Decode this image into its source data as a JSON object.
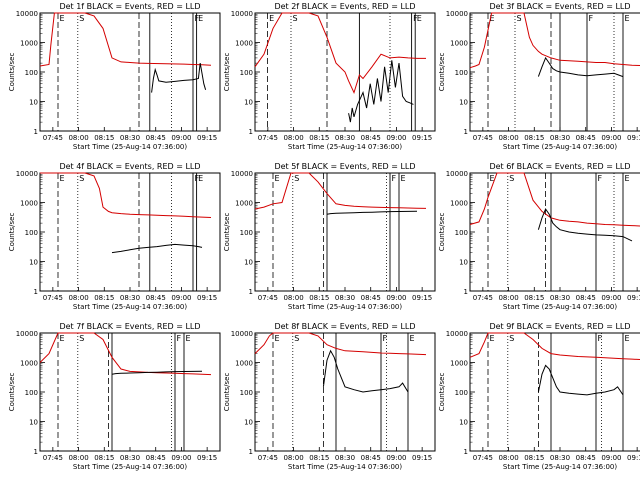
{
  "chart_data": [
    {
      "type": "line",
      "title": "Det 1f BLACK = Events, RED = LLD",
      "xlabel": "Start Time (25-Aug-14 07:36:00)",
      "ylabel": "Counts/sec",
      "yscale": "log",
      "ylim": [
        1,
        10000
      ],
      "x_ticks": [
        "07:45",
        "08:00",
        "08:15",
        "08:30",
        "08:45",
        "09:00",
        "09:15"
      ],
      "y_ticks": [
        "1",
        "10",
        "100",
        "1000",
        "10000"
      ],
      "markers": [
        "E",
        "S",
        "F",
        "E"
      ],
      "series": [
        {
          "color": "#d40000",
          "x": [
            0,
            5,
            6,
            8,
            12,
            15,
            18,
            22,
            25,
            30,
            35,
            40,
            45,
            50,
            55,
            60,
            70,
            80,
            85,
            90,
            95
          ],
          "y": [
            160,
            180,
            800,
            10000,
            10000,
            10000,
            10000,
            10000,
            10000,
            8000,
            3000,
            300,
            220,
            210,
            200,
            195,
            190,
            185,
            180,
            175,
            170
          ]
        },
        {
          "color": "#000000",
          "x": [
            62,
            63,
            64,
            65,
            66,
            70,
            75,
            80,
            85,
            88,
            89,
            90,
            91,
            92
          ],
          "y": [
            20,
            60,
            120,
            80,
            50,
            45,
            48,
            52,
            55,
            60,
            200,
            90,
            40,
            25
          ]
        }
      ],
      "dashed_lines": [
        10,
        55
      ],
      "dotted_lines": [
        21,
        73
      ],
      "solid_lines": [
        61,
        85,
        87
      ]
    },
    {
      "type": "line",
      "title": "Det 2f BLACK = Events, RED = LLD",
      "xlabel": "Start Time (25-Aug-14 07:36:00)",
      "ylabel": "Counts/sec",
      "yscale": "log",
      "ylim": [
        1,
        10000
      ],
      "x_ticks": [
        "07:45",
        "08:00",
        "08:15",
        "08:30",
        "08:45",
        "09:00",
        "09:15"
      ],
      "y_ticks": [
        "1",
        "10",
        "100",
        "1000",
        "10000"
      ],
      "markers": [
        "E",
        "S",
        "F",
        "E"
      ],
      "series": [
        {
          "color": "#d40000",
          "x": [
            0,
            5,
            10,
            15,
            20,
            25,
            30,
            35,
            40,
            45,
            50,
            52,
            55,
            58,
            60,
            65,
            70,
            75,
            80,
            85,
            90,
            95
          ],
          "y": [
            150,
            400,
            3000,
            10000,
            10000,
            10000,
            10000,
            8000,
            1500,
            200,
            100,
            50,
            20,
            80,
            60,
            150,
            400,
            300,
            320,
            300,
            290,
            290
          ]
        },
        {
          "color": "#000000",
          "x": [
            52,
            53,
            54,
            55,
            57,
            60,
            62,
            64,
            66,
            68,
            70,
            72,
            74,
            76,
            78,
            80,
            82,
            84,
            86,
            88
          ],
          "y": [
            4,
            2,
            6,
            3,
            8,
            20,
            6,
            40,
            8,
            60,
            10,
            150,
            20,
            250,
            30,
            200,
            15,
            10,
            9,
            8
          ]
        }
      ],
      "dashed_lines": [
        7,
        40
      ],
      "dotted_lines": [
        20,
        75
      ],
      "solid_lines": [
        58,
        87,
        89
      ]
    },
    {
      "type": "line",
      "title": "Det 3f BLACK = Events, RED = LLD",
      "xlabel": "Start Time (25-Aug-14 07:36:00)",
      "ylabel": "Counts/sec",
      "yscale": "log",
      "ylim": [
        1,
        10000
      ],
      "x_ticks": [
        "07:45",
        "08:00",
        "08:15",
        "08:30",
        "08:45",
        "09:00",
        "09:15"
      ],
      "y_ticks": [
        "1",
        "10",
        "100",
        "1000",
        "10000"
      ],
      "markers": [
        "E",
        "S",
        "F",
        "E"
      ],
      "series": [
        {
          "color": "#d40000",
          "x": [
            0,
            3,
            5,
            8,
            12,
            15,
            20,
            25,
            30,
            33,
            35,
            38,
            40,
            45,
            50,
            55,
            60,
            65,
            70,
            75,
            80,
            85,
            90,
            95
          ],
          "y": [
            140,
            160,
            180,
            700,
            10000,
            10000,
            10000,
            10000,
            10000,
            1500,
            800,
            500,
            400,
            300,
            250,
            240,
            230,
            220,
            210,
            210,
            190,
            180,
            170,
            165
          ]
        },
        {
          "color": "#000000",
          "x": [
            38,
            40,
            42,
            44,
            46,
            48,
            50,
            55,
            60,
            65,
            70,
            75,
            80,
            85
          ],
          "y": [
            70,
            150,
            300,
            200,
            130,
            110,
            100,
            90,
            80,
            75,
            80,
            85,
            90,
            70
          ]
        }
      ],
      "dashed_lines": [
        10,
        45
      ],
      "dotted_lines": [
        25,
        80
      ],
      "solid_lines": [
        50,
        65,
        85
      ]
    },
    {
      "type": "line",
      "title": "Det 4f BLACK = Events, RED = LLD",
      "xlabel": "Start Time (25-Aug-14 07:36:00)",
      "ylabel": "Counts/sec",
      "yscale": "log",
      "ylim": [
        1,
        10000
      ],
      "x_ticks": [
        "07:45",
        "08:00",
        "08:15",
        "08:30",
        "08:45",
        "09:00",
        "09:15"
      ],
      "y_ticks": [
        "1",
        "10",
        "100",
        "1000",
        "10000"
      ],
      "markers": [
        "E",
        "S",
        "F",
        "E"
      ],
      "series": [
        {
          "color": "#d40000",
          "x": [
            0,
            10,
            15,
            20,
            25,
            30,
            33,
            35,
            38,
            40,
            45,
            50,
            55,
            60,
            65,
            70,
            75,
            80,
            85,
            90,
            95
          ],
          "y": [
            10000,
            10000,
            10000,
            10000,
            10000,
            8000,
            3000,
            700,
            500,
            450,
            420,
            400,
            390,
            380,
            370,
            360,
            350,
            340,
            330,
            320,
            310
          ]
        },
        {
          "color": "#000000",
          "x": [
            40,
            45,
            50,
            55,
            60,
            65,
            70,
            75,
            80,
            85,
            88,
            90
          ],
          "y": [
            20,
            22,
            25,
            28,
            30,
            32,
            35,
            38,
            36,
            34,
            32,
            30
          ]
        }
      ],
      "dashed_lines": [
        10,
        55
      ],
      "dotted_lines": [
        21,
        73
      ],
      "solid_lines": [
        61,
        85,
        87
      ]
    },
    {
      "type": "line",
      "title": "Det 5f BLACK = Events, RED = LLD",
      "xlabel": "Start Time (25-Aug-14 07:36:00)",
      "ylabel": "Counts/sec",
      "yscale": "log",
      "ylim": [
        1,
        10000
      ],
      "x_ticks": [
        "07:45",
        "08:00",
        "08:15",
        "08:30",
        "08:45",
        "09:00",
        "09:15"
      ],
      "y_ticks": [
        "1",
        "10",
        "100",
        "1000",
        "10000"
      ],
      "markers": [
        "E",
        "S",
        "F",
        "E"
      ],
      "series": [
        {
          "color": "#d40000",
          "x": [
            0,
            5,
            10,
            15,
            20,
            25,
            30,
            35,
            40,
            45,
            50,
            55,
            60,
            65,
            70,
            75,
            80,
            85,
            90,
            95
          ],
          "y": [
            600,
            700,
            900,
            1000,
            10000,
            10000,
            10000,
            5000,
            2000,
            900,
            800,
            750,
            720,
            700,
            680,
            670,
            660,
            650,
            640,
            630
          ]
        },
        {
          "color": "#000000",
          "x": [
            40,
            42,
            45,
            50,
            55,
            60,
            65,
            70,
            75,
            80,
            85,
            90
          ],
          "y": [
            400,
            420,
            430,
            440,
            450,
            460,
            470,
            480,
            490,
            495,
            500,
            505
          ]
        }
      ],
      "dashed_lines": [
        10,
        38
      ],
      "dotted_lines": [
        21,
        73
      ],
      "solid_lines": [
        40,
        75,
        80
      ]
    },
    {
      "type": "line",
      "title": "Det 6f BLACK = Events, RED = LLD",
      "xlabel": "Start Time (25-Aug-14 07:36:00)",
      "ylabel": "Counts/sec",
      "yscale": "log",
      "ylim": [
        1,
        10000
      ],
      "x_ticks": [
        "07:45",
        "08:00",
        "08:15",
        "08:30",
        "08:45",
        "09:00",
        "09:15"
      ],
      "y_ticks": [
        "1",
        "10",
        "100",
        "1000",
        "10000"
      ],
      "markers": [
        "E",
        "S",
        "F",
        "E"
      ],
      "series": [
        {
          "color": "#d40000",
          "x": [
            0,
            5,
            8,
            10,
            15,
            20,
            25,
            30,
            35,
            40,
            45,
            50,
            55,
            60,
            65,
            70,
            75,
            80,
            85,
            90,
            95
          ],
          "y": [
            180,
            220,
            600,
            1500,
            10000,
            10000,
            10000,
            10000,
            1200,
            500,
            300,
            250,
            230,
            220,
            200,
            190,
            180,
            175,
            170,
            165,
            160
          ]
        },
        {
          "color": "#000000",
          "x": [
            38,
            40,
            42,
            44,
            46,
            48,
            50,
            55,
            60,
            65,
            70,
            75,
            80,
            85,
            90
          ],
          "y": [
            120,
            300,
            600,
            400,
            200,
            150,
            120,
            100,
            90,
            85,
            80,
            78,
            75,
            70,
            50
          ]
        }
      ],
      "dashed_lines": [
        10,
        42
      ],
      "dotted_lines": [
        21,
        80
      ],
      "solid_lines": [
        45,
        70,
        85
      ]
    },
    {
      "type": "line",
      "title": "Det 7f BLACK = Events, RED = LLD",
      "xlabel": "Start Time (25-Aug-14 07:36:00)",
      "ylabel": "Counts/sec",
      "yscale": "log",
      "ylim": [
        1,
        10000
      ],
      "x_ticks": [
        "07:45",
        "08:00",
        "08:15",
        "08:30",
        "08:45",
        "09:00",
        "09:15"
      ],
      "y_ticks": [
        "1",
        "10",
        "100",
        "1000",
        "10000"
      ],
      "markers": [
        "E",
        "S",
        "F",
        "E"
      ],
      "series": [
        {
          "color": "#d40000",
          "x": [
            0,
            5,
            10,
            15,
            20,
            25,
            30,
            35,
            40,
            45,
            50,
            55,
            60,
            65,
            70,
            75,
            80,
            85,
            90,
            95
          ],
          "y": [
            1000,
            2000,
            10000,
            10000,
            10000,
            10000,
            10000,
            6000,
            1500,
            600,
            500,
            480,
            460,
            450,
            440,
            430,
            420,
            410,
            400,
            390
          ]
        },
        {
          "color": "#000000",
          "x": [
            40,
            42,
            45,
            50,
            55,
            60,
            65,
            70,
            75,
            80,
            85,
            90
          ],
          "y": [
            400,
            420,
            430,
            440,
            450,
            460,
            470,
            480,
            490,
            495,
            500,
            505
          ]
        }
      ],
      "dashed_lines": [
        10,
        38
      ],
      "dotted_lines": [
        21,
        73
      ],
      "solid_lines": [
        40,
        75,
        80
      ]
    },
    {
      "type": "line",
      "title": "Det 8f BLACK = Events, RED = LLD",
      "xlabel": "Start Time (25-Aug-14 07:36:00)",
      "ylabel": "Counts/sec",
      "yscale": "log",
      "ylim": [
        1,
        10000
      ],
      "x_ticks": [
        "07:45",
        "08:00",
        "08:15",
        "08:30",
        "08:45",
        "09:00",
        "09:15"
      ],
      "y_ticks": [
        "1",
        "10",
        "100",
        "1000",
        "10000"
      ],
      "markers": [
        "E",
        "S",
        "F",
        "E"
      ],
      "series": [
        {
          "color": "#d40000",
          "x": [
            0,
            5,
            8,
            10,
            15,
            20,
            25,
            30,
            35,
            40,
            45,
            50,
            55,
            60,
            65,
            70,
            75,
            80,
            85,
            90,
            95
          ],
          "y": [
            2000,
            4000,
            8000,
            10000,
            10000,
            10000,
            10000,
            10000,
            8000,
            4000,
            3000,
            2500,
            2400,
            2300,
            2200,
            2100,
            2050,
            2000,
            1950,
            1900,
            1850
          ]
        },
        {
          "color": "#000000",
          "x": [
            38,
            40,
            42,
            44,
            46,
            48,
            50,
            55,
            60,
            65,
            70,
            75,
            80,
            82,
            85
          ],
          "y": [
            150,
            1200,
            2500,
            1500,
            600,
            300,
            150,
            120,
            100,
            110,
            120,
            130,
            150,
            200,
            100
          ]
        }
      ],
      "dashed_lines": [
        10,
        38
      ],
      "dotted_lines": [
        21,
        73
      ],
      "solid_lines": [
        45,
        70,
        85
      ]
    },
    {
      "type": "line",
      "title": "Det 9f BLACK = Events, RED = LLD",
      "xlabel": "Start Time (25-Aug-14 07:36:00)",
      "ylabel": "Counts/sec",
      "yscale": "log",
      "ylim": [
        1,
        10000
      ],
      "x_ticks": [
        "07:45",
        "08:00",
        "08:15",
        "08:30",
        "08:45",
        "09:00",
        "09:15"
      ],
      "y_ticks": [
        "1",
        "10",
        "100",
        "1000",
        "10000"
      ],
      "markers": [
        "E",
        "S",
        "F",
        "E"
      ],
      "series": [
        {
          "color": "#d40000",
          "x": [
            0,
            5,
            8,
            10,
            15,
            20,
            25,
            30,
            35,
            40,
            45,
            50,
            55,
            60,
            65,
            70,
            75,
            80,
            85,
            90,
            95
          ],
          "y": [
            1500,
            2000,
            5000,
            10000,
            10000,
            10000,
            10000,
            10000,
            6000,
            3000,
            2000,
            1800,
            1700,
            1600,
            1550,
            1500,
            1450,
            1400,
            1350,
            1300,
            1250
          ]
        },
        {
          "color": "#000000",
          "x": [
            38,
            40,
            42,
            44,
            46,
            48,
            50,
            55,
            60,
            65,
            70,
            75,
            80,
            82,
            85
          ],
          "y": [
            100,
            400,
            800,
            600,
            300,
            150,
            100,
            90,
            85,
            80,
            90,
            100,
            120,
            150,
            80
          ]
        }
      ],
      "dashed_lines": [
        10,
        38
      ],
      "dotted_lines": [
        21,
        73
      ],
      "solid_lines": [
        45,
        70,
        85
      ]
    }
  ]
}
